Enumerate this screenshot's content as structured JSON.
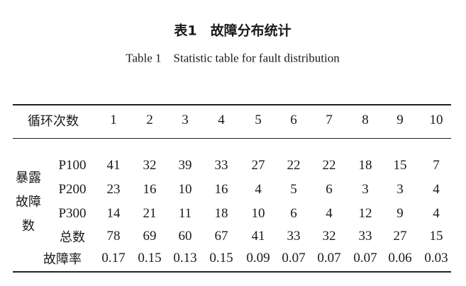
{
  "title_cn": "表1　故障分布统计",
  "title_en": "Table 1　Statistic table for fault distribution",
  "table": {
    "header_label": "循环次数",
    "columns": [
      "1",
      "2",
      "3",
      "4",
      "5",
      "6",
      "7",
      "8",
      "9",
      "10"
    ],
    "group_label_lines": [
      "暴露",
      "故障",
      "数"
    ],
    "rows": [
      {
        "label": "P100",
        "values": [
          "41",
          "32",
          "39",
          "33",
          "27",
          "22",
          "22",
          "18",
          "15",
          "7"
        ]
      },
      {
        "label": "P200",
        "values": [
          "23",
          "16",
          "10",
          "16",
          "4",
          "5",
          "6",
          "3",
          "3",
          "4"
        ]
      },
      {
        "label": "P300",
        "values": [
          "14",
          "21",
          "11",
          "18",
          "10",
          "6",
          "4",
          "12",
          "9",
          "4"
        ]
      },
      {
        "label": "总数",
        "values": [
          "78",
          "69",
          "60",
          "67",
          "41",
          "33",
          "32",
          "33",
          "27",
          "15"
        ]
      }
    ],
    "rate_row": {
      "label": "故障率",
      "values": [
        "0.17",
        "0.15",
        "0.13",
        "0.15",
        "0.09",
        "0.07",
        "0.07",
        "0.07",
        "0.06",
        "0.03"
      ]
    }
  }
}
